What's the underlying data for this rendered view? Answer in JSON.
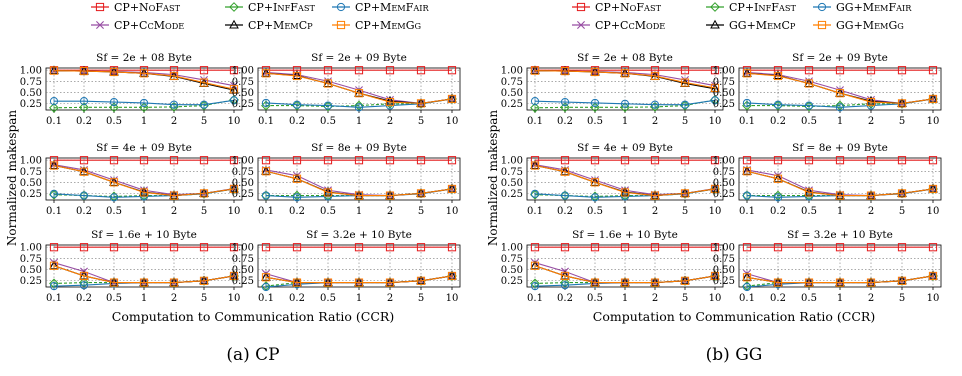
{
  "figure": {
    "ylabel": "Normalized makespan",
    "xlabel": "Computation to Communication Ratio (CCR)",
    "x_tick_labels": [
      "0.1",
      "0.2",
      "0.5",
      "1",
      "2",
      "5",
      "10"
    ],
    "y_tick_labels": [
      "0.25",
      "0.50",
      "0.75",
      "1.00"
    ]
  },
  "colors": {
    "NoFast": "#e41a1c",
    "InfFast": "#33a02c",
    "MemFair": "#1f78b4",
    "CcMode": "#984ea3",
    "MemCp": "#000000",
    "MemGg": "#ff7f00"
  },
  "chart_data": [
    {
      "type": "line",
      "caption": "(a)  CP",
      "legend": [
        {
          "key": "NoFast",
          "label": "CP+NoFast",
          "marker": "square"
        },
        {
          "key": "InfFast",
          "label": "CP+InfFast",
          "marker": "diamond"
        },
        {
          "key": "MemFair",
          "label": "CP+MemFair",
          "marker": "circle"
        },
        {
          "key": "CcMode",
          "label": "CP+CcMode",
          "marker": "x"
        },
        {
          "key": "MemCp",
          "label": "CP+MemCp",
          "marker": "triangle"
        },
        {
          "key": "MemGg",
          "label": "CP+MemGg",
          "marker": "square"
        }
      ],
      "x": [
        0.1,
        0.2,
        0.5,
        1,
        2,
        5,
        10
      ],
      "ylim": [
        0.1,
        1.05
      ],
      "subplots": [
        {
          "title": "Sf = 2e + 08 Byte",
          "series": {
            "NoFast": [
              1,
              1,
              1,
              1,
              1,
              1,
              1
            ],
            "InfFast": [
              0.15,
              0.16,
              0.16,
              0.16,
              0.17,
              0.2,
              0.33
            ],
            "MemFair": [
              0.3,
              0.3,
              0.28,
              0.26,
              0.22,
              0.22,
              0.32
            ],
            "CcMode": [
              0.99,
              0.98,
              0.97,
              0.95,
              0.9,
              0.78,
              0.65
            ],
            "MemCp": [
              0.99,
              0.98,
              0.96,
              0.93,
              0.86,
              0.7,
              0.55
            ],
            "MemGg": [
              0.99,
              0.98,
              0.96,
              0.93,
              0.87,
              0.72,
              0.57
            ]
          }
        },
        {
          "title": "Sf = 2e + 09 Byte",
          "series": {
            "NoFast": [
              1,
              1,
              1,
              1,
              1,
              1,
              1
            ],
            "InfFast": [
              0.2,
              0.2,
              0.18,
              0.2,
              0.24,
              0.24,
              0.35
            ],
            "MemFair": [
              0.26,
              0.22,
              0.2,
              0.16,
              0.2,
              0.24,
              0.35
            ],
            "CcMode": [
              0.95,
              0.9,
              0.75,
              0.55,
              0.33,
              0.25,
              0.35
            ],
            "MemCp": [
              0.93,
              0.88,
              0.7,
              0.48,
              0.3,
              0.25,
              0.35
            ],
            "MemGg": [
              0.93,
              0.87,
              0.7,
              0.48,
              0.28,
              0.25,
              0.35
            ]
          }
        },
        {
          "title": "Sf = 4e + 09 Byte",
          "series": {
            "NoFast": [
              1,
              1,
              1,
              1,
              1,
              1,
              1
            ],
            "InfFast": [
              0.22,
              0.2,
              0.18,
              0.2,
              0.2,
              0.24,
              0.35
            ],
            "MemFair": [
              0.24,
              0.2,
              0.16,
              0.18,
              0.2,
              0.24,
              0.35
            ],
            "CcMode": [
              0.9,
              0.78,
              0.55,
              0.32,
              0.22,
              0.25,
              0.36
            ],
            "MemCp": [
              0.88,
              0.74,
              0.5,
              0.28,
              0.2,
              0.25,
              0.35
            ],
            "MemGg": [
              0.88,
              0.74,
              0.5,
              0.27,
              0.2,
              0.25,
              0.35
            ]
          }
        },
        {
          "title": "Sf = 8e + 09 Byte",
          "series": {
            "NoFast": [
              1,
              1,
              1,
              1,
              1,
              1,
              1
            ],
            "InfFast": [
              0.2,
              0.2,
              0.2,
              0.2,
              0.2,
              0.25,
              0.35
            ],
            "MemFair": [
              0.2,
              0.16,
              0.18,
              0.2,
              0.2,
              0.24,
              0.35
            ],
            "CcMode": [
              0.78,
              0.65,
              0.32,
              0.22,
              0.2,
              0.25,
              0.35
            ],
            "MemCp": [
              0.75,
              0.58,
              0.28,
              0.2,
              0.2,
              0.25,
              0.35
            ],
            "MemGg": [
              0.75,
              0.58,
              0.27,
              0.2,
              0.2,
              0.25,
              0.35
            ]
          }
        },
        {
          "title": "Sf = 1.6e + 10 Byte",
          "series": {
            "NoFast": [
              1,
              1,
              1,
              1,
              1,
              1,
              1
            ],
            "InfFast": [
              0.18,
              0.2,
              0.2,
              0.2,
              0.2,
              0.24,
              0.35
            ],
            "MemFair": [
              0.12,
              0.14,
              0.18,
              0.2,
              0.2,
              0.24,
              0.35
            ],
            "CcMode": [
              0.65,
              0.45,
              0.2,
              0.2,
              0.2,
              0.24,
              0.35
            ],
            "MemCp": [
              0.58,
              0.35,
              0.2,
              0.2,
              0.2,
              0.24,
              0.35
            ],
            "MemGg": [
              0.58,
              0.35,
              0.2,
              0.2,
              0.2,
              0.24,
              0.35
            ]
          }
        },
        {
          "title": "Sf = 3.2e + 10 Byte",
          "series": {
            "NoFast": [
              1,
              1,
              1,
              1,
              1,
              1,
              1
            ],
            "InfFast": [
              0.12,
              0.2,
              0.2,
              0.2,
              0.2,
              0.24,
              0.35
            ],
            "MemFair": [
              0.1,
              0.16,
              0.2,
              0.2,
              0.2,
              0.24,
              0.35
            ],
            "CcMode": [
              0.4,
              0.2,
              0.2,
              0.2,
              0.2,
              0.24,
              0.35
            ],
            "MemCp": [
              0.32,
              0.2,
              0.2,
              0.2,
              0.2,
              0.24,
              0.35
            ],
            "MemGg": [
              0.32,
              0.2,
              0.2,
              0.2,
              0.2,
              0.24,
              0.35
            ]
          }
        }
      ]
    },
    {
      "type": "line",
      "caption": "(b)  GG",
      "legend": [
        {
          "key": "NoFast",
          "label": "CP+NoFast",
          "marker": "square"
        },
        {
          "key": "InfFast",
          "label": "CP+InfFast",
          "marker": "diamond"
        },
        {
          "key": "MemFair",
          "label": "GG+MemFair",
          "marker": "circle"
        },
        {
          "key": "CcMode",
          "label": "CP+CcMode",
          "marker": "x"
        },
        {
          "key": "MemCp",
          "label": "GG+MemCp",
          "marker": "triangle"
        },
        {
          "key": "MemGg",
          "label": "GG+MemGg",
          "marker": "square"
        }
      ],
      "x": [
        0.1,
        0.2,
        0.5,
        1,
        2,
        5,
        10
      ],
      "ylim": [
        0.1,
        1.05
      ],
      "subplots": [
        {
          "title": "Sf = 2e + 08 Byte",
          "series": {
            "NoFast": [
              1,
              1,
              1,
              1,
              1,
              1,
              1
            ],
            "InfFast": [
              0.15,
              0.16,
              0.16,
              0.16,
              0.17,
              0.2,
              0.33
            ],
            "MemFair": [
              0.3,
              0.28,
              0.26,
              0.24,
              0.22,
              0.22,
              0.32
            ],
            "CcMode": [
              0.99,
              0.98,
              0.97,
              0.95,
              0.9,
              0.78,
              0.65
            ],
            "MemCp": [
              0.99,
              0.98,
              0.96,
              0.93,
              0.86,
              0.7,
              0.58
            ],
            "MemGg": [
              0.99,
              0.98,
              0.96,
              0.93,
              0.87,
              0.72,
              0.6
            ]
          }
        },
        {
          "title": "Sf = 2e + 09 Byte",
          "series": {
            "NoFast": [
              1,
              1,
              1,
              1,
              1,
              1,
              1
            ],
            "InfFast": [
              0.2,
              0.2,
              0.18,
              0.2,
              0.24,
              0.24,
              0.35
            ],
            "MemFair": [
              0.26,
              0.22,
              0.2,
              0.16,
              0.2,
              0.24,
              0.35
            ],
            "CcMode": [
              0.95,
              0.9,
              0.75,
              0.55,
              0.33,
              0.25,
              0.35
            ],
            "MemCp": [
              0.93,
              0.88,
              0.7,
              0.48,
              0.3,
              0.25,
              0.35
            ],
            "MemGg": [
              0.93,
              0.87,
              0.7,
              0.48,
              0.28,
              0.25,
              0.35
            ]
          }
        },
        {
          "title": "Sf = 4e + 09 Byte",
          "series": {
            "NoFast": [
              1,
              1,
              1,
              1,
              1,
              1,
              1
            ],
            "InfFast": [
              0.22,
              0.2,
              0.18,
              0.2,
              0.2,
              0.24,
              0.35
            ],
            "MemFair": [
              0.24,
              0.2,
              0.16,
              0.18,
              0.2,
              0.24,
              0.35
            ],
            "CcMode": [
              0.9,
              0.78,
              0.55,
              0.32,
              0.22,
              0.25,
              0.36
            ],
            "MemCp": [
              0.88,
              0.74,
              0.5,
              0.28,
              0.2,
              0.25,
              0.35
            ],
            "MemGg": [
              0.88,
              0.74,
              0.5,
              0.27,
              0.2,
              0.25,
              0.35
            ]
          }
        },
        {
          "title": "Sf = 8e + 09 Byte",
          "series": {
            "NoFast": [
              1,
              1,
              1,
              1,
              1,
              1,
              1
            ],
            "InfFast": [
              0.2,
              0.2,
              0.2,
              0.2,
              0.2,
              0.25,
              0.35
            ],
            "MemFair": [
              0.2,
              0.16,
              0.18,
              0.2,
              0.2,
              0.24,
              0.35
            ],
            "CcMode": [
              0.78,
              0.65,
              0.32,
              0.22,
              0.2,
              0.25,
              0.35
            ],
            "MemCp": [
              0.75,
              0.58,
              0.28,
              0.2,
              0.2,
              0.25,
              0.35
            ],
            "MemGg": [
              0.75,
              0.58,
              0.27,
              0.2,
              0.2,
              0.25,
              0.35
            ]
          }
        },
        {
          "title": "Sf = 1.6e + 10 Byte",
          "series": {
            "NoFast": [
              1,
              1,
              1,
              1,
              1,
              1,
              1
            ],
            "InfFast": [
              0.18,
              0.2,
              0.2,
              0.2,
              0.2,
              0.24,
              0.35
            ],
            "MemFair": [
              0.12,
              0.14,
              0.18,
              0.2,
              0.2,
              0.24,
              0.35
            ],
            "CcMode": [
              0.65,
              0.45,
              0.2,
              0.2,
              0.2,
              0.24,
              0.35
            ],
            "MemCp": [
              0.58,
              0.35,
              0.2,
              0.2,
              0.2,
              0.24,
              0.35
            ],
            "MemGg": [
              0.58,
              0.35,
              0.2,
              0.2,
              0.2,
              0.24,
              0.35
            ]
          }
        },
        {
          "title": "Sf = 3.2e + 10 Byte",
          "series": {
            "NoFast": [
              1,
              1,
              1,
              1,
              1,
              1,
              1
            ],
            "InfFast": [
              0.12,
              0.2,
              0.2,
              0.2,
              0.2,
              0.24,
              0.35
            ],
            "MemFair": [
              0.1,
              0.16,
              0.2,
              0.2,
              0.2,
              0.24,
              0.35
            ],
            "CcMode": [
              0.4,
              0.2,
              0.2,
              0.2,
              0.2,
              0.24,
              0.35
            ],
            "MemCp": [
              0.32,
              0.2,
              0.2,
              0.2,
              0.2,
              0.24,
              0.35
            ],
            "MemGg": [
              0.32,
              0.2,
              0.2,
              0.2,
              0.2,
              0.24,
              0.35
            ]
          }
        }
      ]
    }
  ]
}
